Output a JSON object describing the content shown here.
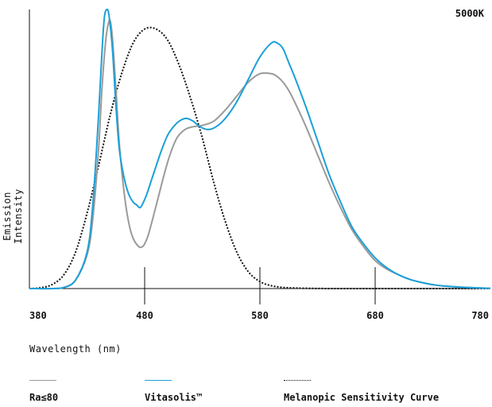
{
  "chart_data": {
    "type": "line",
    "badge": "5000K",
    "xlabel": "Wavelength (nm)",
    "ylabel": "Emission Intensity",
    "xlim": [
      380,
      780
    ],
    "ylim": [
      0,
      1
    ],
    "xticks": [
      380,
      480,
      580,
      680,
      780
    ],
    "xtick_labels": [
      "380",
      "480",
      "580",
      "680",
      "780"
    ],
    "grid": false,
    "legend_position": "bottom",
    "series": [
      {
        "name": "Ra≤80",
        "color": "#9a9a9a",
        "style": "solid",
        "x": [
          380,
          400,
          410,
          420,
          430,
          435,
          440,
          443,
          446,
          448,
          450,
          452,
          455,
          458,
          462,
          466,
          470,
          475,
          478,
          480,
          483,
          487,
          492,
          497,
          502,
          508,
          515,
          522,
          530,
          540,
          550,
          560,
          570,
          580,
          590,
          595,
          600,
          605,
          610,
          620,
          630,
          640,
          650,
          660,
          670,
          680,
          690,
          700,
          710,
          720,
          730,
          740,
          760,
          780
        ],
        "y": [
          0.0,
          0.0,
          0.004,
          0.03,
          0.12,
          0.25,
          0.5,
          0.72,
          0.88,
          0.94,
          0.96,
          0.9,
          0.72,
          0.52,
          0.35,
          0.24,
          0.18,
          0.15,
          0.15,
          0.16,
          0.19,
          0.25,
          0.33,
          0.41,
          0.48,
          0.54,
          0.57,
          0.58,
          0.585,
          0.6,
          0.64,
          0.69,
          0.74,
          0.77,
          0.77,
          0.76,
          0.74,
          0.71,
          0.67,
          0.58,
          0.48,
          0.38,
          0.29,
          0.21,
          0.15,
          0.1,
          0.07,
          0.05,
          0.033,
          0.022,
          0.014,
          0.009,
          0.004,
          0.001
        ]
      },
      {
        "name": "Vitasolis™",
        "color": "#1ba0d8",
        "style": "solid",
        "x": [
          380,
          400,
          410,
          420,
          430,
          435,
          440,
          443,
          445,
          447,
          449,
          452,
          455,
          458,
          462,
          466,
          470,
          473,
          476,
          479,
          482,
          486,
          490,
          495,
          500,
          505,
          510,
          516,
          522,
          528,
          535,
          542,
          550,
          560,
          570,
          580,
          590,
          595,
          600,
          605,
          610,
          620,
          630,
          640,
          650,
          660,
          670,
          680,
          690,
          700,
          710,
          720,
          730,
          740,
          760,
          780
        ],
        "y": [
          0.0,
          0.0,
          0.004,
          0.03,
          0.13,
          0.3,
          0.62,
          0.85,
          0.97,
          1.0,
          0.98,
          0.86,
          0.66,
          0.5,
          0.4,
          0.34,
          0.31,
          0.3,
          0.29,
          0.31,
          0.34,
          0.39,
          0.44,
          0.5,
          0.55,
          0.58,
          0.6,
          0.61,
          0.6,
          0.58,
          0.57,
          0.58,
          0.61,
          0.67,
          0.75,
          0.83,
          0.88,
          0.88,
          0.86,
          0.81,
          0.76,
          0.65,
          0.53,
          0.41,
          0.31,
          0.22,
          0.16,
          0.11,
          0.075,
          0.05,
          0.033,
          0.022,
          0.014,
          0.009,
          0.004,
          0.001
        ]
      },
      {
        "name": "Melanopic Sensitivity Curve",
        "color": "#111111",
        "style": "dotted",
        "x": [
          380,
          390,
          400,
          410,
          420,
          430,
          440,
          450,
          460,
          470,
          480,
          490,
          500,
          510,
          520,
          530,
          540,
          550,
          560,
          570,
          580,
          590,
          600,
          610,
          620,
          640,
          660,
          700,
          780
        ],
        "y": [
          0.0,
          0.003,
          0.015,
          0.05,
          0.13,
          0.27,
          0.44,
          0.62,
          0.77,
          0.88,
          0.93,
          0.93,
          0.89,
          0.8,
          0.68,
          0.54,
          0.38,
          0.24,
          0.13,
          0.06,
          0.025,
          0.01,
          0.004,
          0.002,
          0.001,
          0.0,
          0.0,
          0.0,
          0.0
        ]
      }
    ]
  }
}
